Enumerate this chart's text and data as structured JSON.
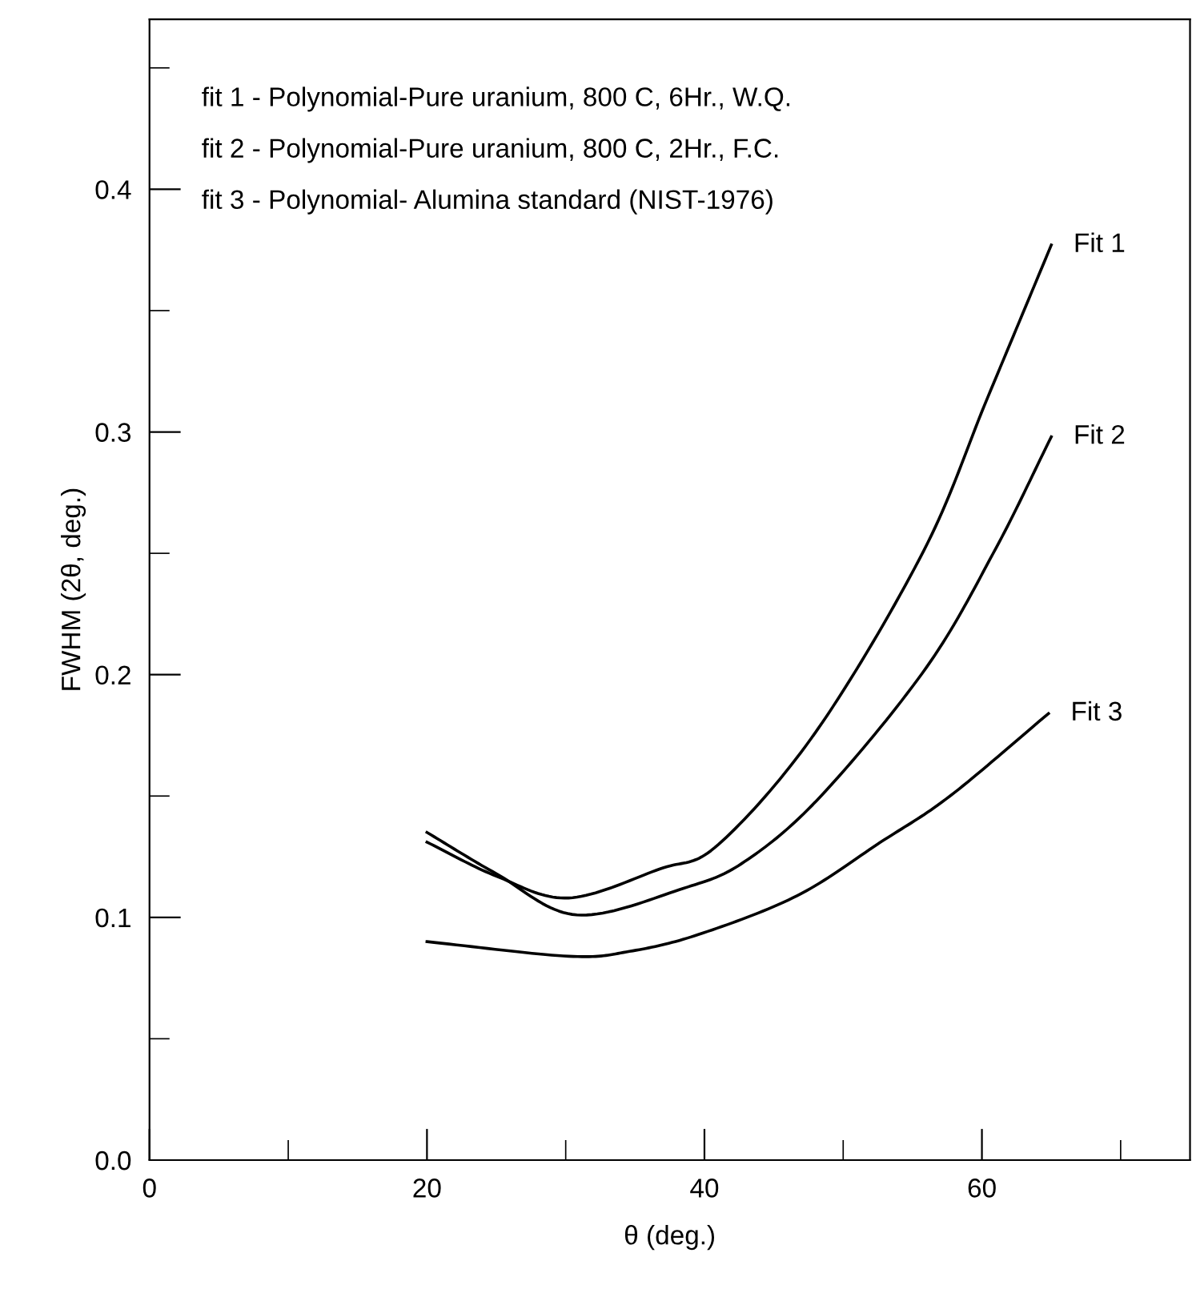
{
  "chart_data": {
    "type": "line",
    "xlabel": "θ (deg.)",
    "ylabel": "FWHM (2θ, deg.)",
    "annotations": [
      "fit 1 - Polynomial-Pure uranium, 800 C, 6Hr., W.Q.",
      "fit 2 - Polynomial-Pure uranium, 800 C, 2Hr., F.C.",
      "fit 3 - Polynomial- Alumina standard (NIST-1976)"
    ],
    "xlim": [
      0,
      75
    ],
    "ylim": [
      0,
      0.47
    ],
    "xticks": [
      0,
      {
        "value": 10,
        "label": null
      },
      20,
      {
        "value": 30,
        "label": null
      },
      40,
      {
        "value": 50,
        "label": null
      },
      60,
      {
        "value": 70,
        "label": null
      }
    ],
    "yticks": [
      {
        "value": 0,
        "label": "0.0"
      },
      {
        "value": 0.05,
        "label": null
      },
      0.1,
      {
        "value": 0.15,
        "label": null
      },
      0.2,
      {
        "value": 0.25,
        "label": null
      },
      0.3,
      {
        "value": 0.35,
        "label": null
      },
      0.4,
      {
        "value": 0.45,
        "label": null
      }
    ],
    "grid": false,
    "legend": false,
    "marker": "none",
    "line_style": "solid",
    "series": [
      {
        "name": "Fit 1",
        "color": "#000000",
        "x": [
          20,
          25,
          30.2,
          36.8,
          41,
          48.1,
          55.8,
          60.4,
          65
        ],
        "values": [
          0.131,
          0.117,
          0.108,
          0.12,
          0.13,
          0.177,
          0.251,
          0.314,
          0.377
        ]
      },
      {
        "name": "Fit 2",
        "color": "#000000",
        "x": [
          20,
          25,
          30.8,
          38.5,
          42.9,
          48.4,
          56,
          61,
          65
        ],
        "values": [
          0.135,
          0.118,
          0.101,
          0.112,
          0.123,
          0.15,
          0.203,
          0.252,
          0.298
        ]
      },
      {
        "name": "Fit 3",
        "color": "#000000",
        "x": [
          20,
          30.2,
          34.6,
          39.6,
          46.7,
          52.7,
          57.7,
          64.8
        ],
        "values": [
          0.09,
          0.084,
          0.086,
          0.093,
          0.109,
          0.131,
          0.15,
          0.184
        ]
      }
    ]
  }
}
